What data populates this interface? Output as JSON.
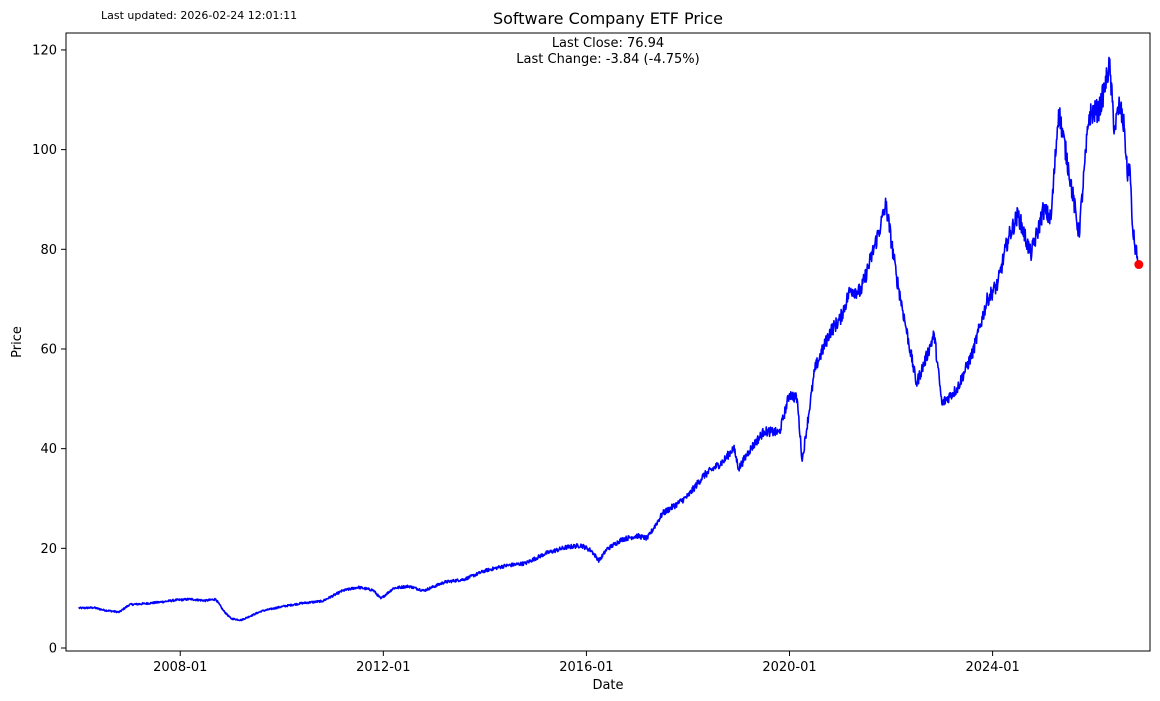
{
  "chart_data": {
    "type": "line",
    "title": "Software Company ETF Price",
    "xlabel": "Date",
    "ylabel": "Price",
    "updated_text": "Last updated: 2026-02-24 12:01:11",
    "annotations": {
      "last_close": "Last Close: 76.94",
      "last_change": "Last Change: -3.84 (-4.75%)"
    },
    "xlim": [
      2005.75,
      2027.1
    ],
    "ylim": [
      -0.6,
      123.4
    ],
    "x_ticks": [
      {
        "value": 2008.0,
        "label": "2008-01"
      },
      {
        "value": 2012.0,
        "label": "2012-01"
      },
      {
        "value": 2016.0,
        "label": "2016-01"
      },
      {
        "value": 2020.0,
        "label": "2020-01"
      },
      {
        "value": 2024.0,
        "label": "2024-01"
      }
    ],
    "y_ticks": [
      0,
      20,
      40,
      60,
      80,
      100,
      120
    ],
    "series": [
      {
        "name": "Price",
        "color": "#0000ff",
        "x": [
          2006.0,
          2006.3,
          2006.5,
          2006.8,
          2007.0,
          2007.3,
          2007.6,
          2007.9,
          2008.2,
          2008.5,
          2008.7,
          2008.85,
          2009.0,
          2009.2,
          2009.6,
          2010.0,
          2010.4,
          2010.8,
          2011.2,
          2011.5,
          2011.8,
          2011.95,
          2012.2,
          2012.5,
          2012.8,
          2013.2,
          2013.6,
          2014.0,
          2014.4,
          2014.8,
          2015.2,
          2015.6,
          2015.9,
          2016.1,
          2016.25,
          2016.4,
          2016.7,
          2017.0,
          2017.2,
          2017.5,
          2017.8,
          2018.0,
          2018.3,
          2018.7,
          2018.9,
          2019.0,
          2019.2,
          2019.5,
          2019.8,
          2020.0,
          2020.15,
          2020.25,
          2020.5,
          2020.8,
          2021.0,
          2021.2,
          2021.4,
          2021.6,
          2021.8,
          2021.9,
          2022.1,
          2022.3,
          2022.5,
          2022.7,
          2022.85,
          2023.0,
          2023.3,
          2023.6,
          2023.9,
          2024.1,
          2024.3,
          2024.5,
          2024.75,
          2024.9,
          2025.0,
          2025.15,
          2025.3,
          2025.5,
          2025.7,
          2025.9,
          2026.1,
          2026.2,
          2026.3,
          2026.4,
          2026.5,
          2026.6,
          2026.65,
          2026.7,
          2026.75,
          2026.8,
          2026.85,
          2026.88
        ],
        "values": [
          8.0,
          8.1,
          7.6,
          7.2,
          8.7,
          8.9,
          9.2,
          9.6,
          9.8,
          9.5,
          9.8,
          7.5,
          5.9,
          5.6,
          7.4,
          8.3,
          9.0,
          9.4,
          11.5,
          12.2,
          11.6,
          9.9,
          12.0,
          12.4,
          11.5,
          13.2,
          13.8,
          15.5,
          16.5,
          17.0,
          19.0,
          20.2,
          20.6,
          19.5,
          17.5,
          19.8,
          21.8,
          22.5,
          22.0,
          27.0,
          29.0,
          30.5,
          34.5,
          37.5,
          40.2,
          36.0,
          39.5,
          43.5,
          43.2,
          51.0,
          50.0,
          37.5,
          56.0,
          63.5,
          66.0,
          72.0,
          71.5,
          78.0,
          85.0,
          89.0,
          75.0,
          64.0,
          53.0,
          58.5,
          63.0,
          49.0,
          52.0,
          59.0,
          70.0,
          73.0,
          82.0,
          87.0,
          79.0,
          84.0,
          88.0,
          86.0,
          108.0,
          96.0,
          83.0,
          107.0,
          108.0,
          112.0,
          117.0,
          104.0,
          109.0,
          104.0,
          95.0,
          97.0,
          85.0,
          80.7,
          78.5,
          76.94
        ]
      }
    ],
    "last_point": {
      "x": 2026.88,
      "y": 76.94,
      "color": "#ff0000"
    }
  }
}
